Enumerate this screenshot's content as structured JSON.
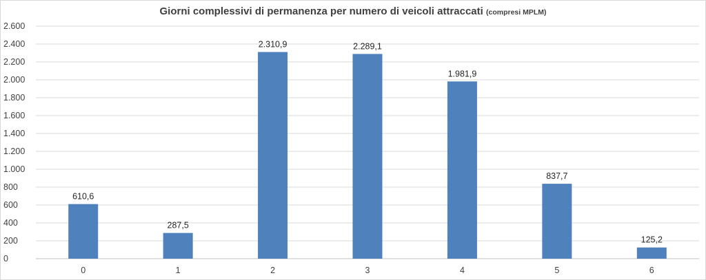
{
  "chart_data": {
    "type": "bar",
    "title": "Giorni complessivi di permanenza per numero di veicoli attraccati",
    "subtitle": "(compresi MPLM)",
    "xlabel": "",
    "ylabel": "",
    "categories": [
      "0",
      "1",
      "2",
      "3",
      "4",
      "5",
      "6"
    ],
    "values": [
      610.6,
      287.5,
      2310.9,
      2289.1,
      1981.9,
      837.7,
      125.2
    ],
    "data_labels": [
      "610,6",
      "287,5",
      "2.310,9",
      "2.289,1",
      "1.981,9",
      "837,7",
      "125,2"
    ],
    "ylim": [
      0,
      2600
    ],
    "yticks": [
      0,
      200,
      400,
      600,
      800,
      1000,
      1200,
      1400,
      1600,
      1800,
      2000,
      2200,
      2400,
      2600
    ],
    "ytick_labels": [
      "0",
      "200",
      "400",
      "600",
      "800",
      "1.000",
      "1.200",
      "1.400",
      "1.600",
      "1.800",
      "2.000",
      "2.200",
      "2.400",
      "2.600"
    ],
    "grid": true,
    "legend": "none",
    "bar_color": "#4f81bd",
    "grid_color": "#d9d9d9"
  }
}
